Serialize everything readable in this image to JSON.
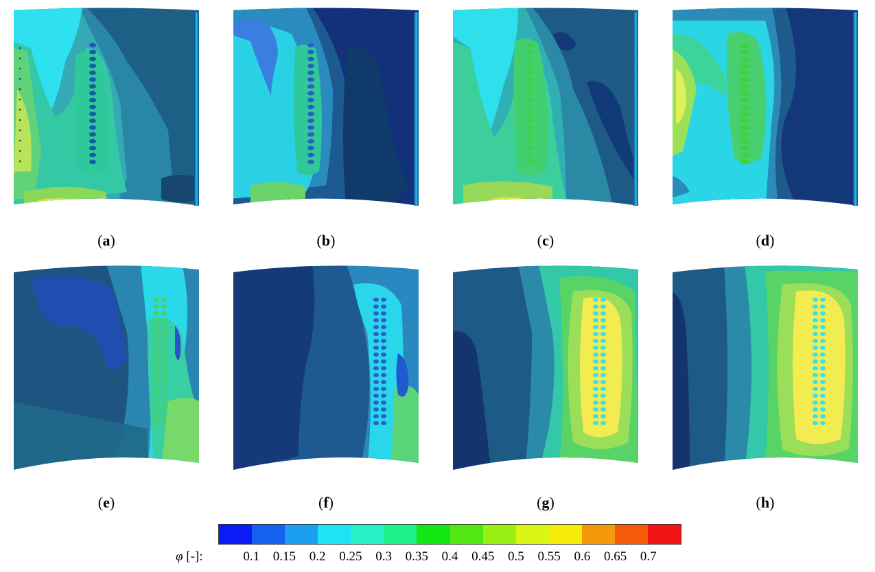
{
  "panels": [
    {
      "id": "a",
      "letter": "a"
    },
    {
      "id": "b",
      "letter": "b"
    },
    {
      "id": "c",
      "letter": "c"
    },
    {
      "id": "d",
      "letter": "d"
    },
    {
      "id": "e",
      "letter": "e"
    },
    {
      "id": "f",
      "letter": "f"
    },
    {
      "id": "g",
      "letter": "g"
    },
    {
      "id": "h",
      "letter": "h"
    }
  ],
  "colorbar": {
    "symbol": "φ",
    "unit": " [-]:",
    "levels": [
      "0.1",
      "0.15",
      "0.2",
      "0.25",
      "0.3",
      "0.35",
      "0.4",
      "0.45",
      "0.5",
      "0.55",
      "0.6",
      "0.65",
      "0.7"
    ],
    "colors": [
      "#0a1cf5",
      "#1460f0",
      "#1aa0ee",
      "#1ee3f5",
      "#28f0c4",
      "#1ef08a",
      "#14e614",
      "#52e612",
      "#9af014",
      "#d8f514",
      "#f5ec0a",
      "#f5980a",
      "#f55a0a",
      "#f01414"
    ]
  }
}
